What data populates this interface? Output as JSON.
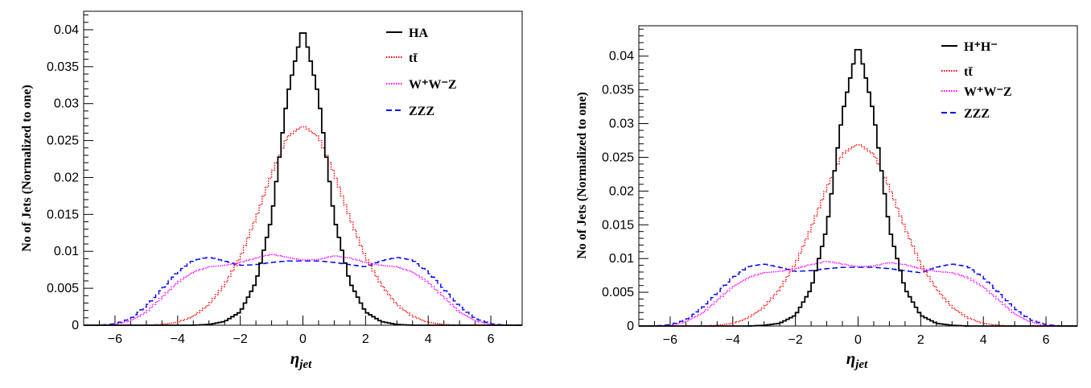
{
  "chart_data": [
    {
      "type": "line",
      "title": "",
      "xlabel": "η",
      "xlabel_sub": "jet",
      "ylabel": "No of Jets (Normalized to one)",
      "xlim": [
        -7,
        7
      ],
      "ylim": [
        0,
        0.0425
      ],
      "xticks": [
        "−6",
        "−4",
        "−2",
        "0",
        "2",
        "4",
        "6"
      ],
      "yticks": [
        "0",
        "0.005",
        "0.01",
        "0.015",
        "0.02",
        "0.025",
        "0.03",
        "0.035",
        "0.04"
      ],
      "legend_position": "top-right",
      "series": [
        {
          "name": "HA",
          "color": "#000000",
          "style": "solid"
        },
        {
          "name": "tt̄",
          "color": "#ff0000",
          "style": "dotted"
        },
        {
          "name": "W⁺W⁻Z",
          "color": "#ff00ff",
          "style": "dotted"
        },
        {
          "name": "ZZZ",
          "color": "#0000ff",
          "style": "dashed"
        }
      ],
      "x": [
        -7,
        -6.5,
        -6,
        -5.5,
        -5,
        -4.5,
        -4,
        -3.5,
        -3,
        -2.5,
        -2,
        -1.5,
        -1,
        -0.5,
        0,
        0.5,
        1,
        1.5,
        2,
        2.5,
        3,
        3.5,
        4,
        4.5,
        5,
        5.5,
        6,
        6.5,
        7
      ],
      "series_values": [
        [
          0,
          0,
          0,
          0,
          0,
          0,
          0,
          0,
          0.0001,
          0.0005,
          0.0018,
          0.0058,
          0.0145,
          0.031,
          0.0405,
          0.031,
          0.0145,
          0.0058,
          0.0018,
          0.0005,
          0.0001,
          0,
          0,
          0,
          0,
          0,
          0,
          0,
          0
        ],
        [
          0,
          0,
          0,
          0,
          0,
          0.0001,
          0.0004,
          0.0012,
          0.0028,
          0.0055,
          0.0092,
          0.0145,
          0.0205,
          0.0255,
          0.027,
          0.0255,
          0.0205,
          0.0145,
          0.0092,
          0.0055,
          0.0028,
          0.0012,
          0.0004,
          0.0001,
          0,
          0,
          0,
          0,
          0
        ],
        [
          0,
          0,
          0.0001,
          0.0006,
          0.0018,
          0.0038,
          0.0058,
          0.0072,
          0.0079,
          0.0081,
          0.0085,
          0.0091,
          0.0096,
          0.0092,
          0.0088,
          0.0089,
          0.0094,
          0.0091,
          0.0085,
          0.0081,
          0.0079,
          0.0072,
          0.0058,
          0.0038,
          0.0018,
          0.0006,
          0.0001,
          0,
          0
        ],
        [
          0,
          0,
          0.0002,
          0.0009,
          0.0026,
          0.0049,
          0.0072,
          0.0088,
          0.0092,
          0.0087,
          0.0081,
          0.0082,
          0.0085,
          0.0087,
          0.0087,
          0.0087,
          0.0085,
          0.0082,
          0.0079,
          0.0087,
          0.0092,
          0.0088,
          0.0072,
          0.0049,
          0.0026,
          0.0009,
          0.0002,
          0,
          0
        ]
      ]
    },
    {
      "type": "line",
      "title": "",
      "xlabel": "η",
      "xlabel_sub": "jet",
      "ylabel": "No of Jets (Normalized to one)",
      "xlim": [
        -7,
        7
      ],
      "ylim": [
        0,
        0.0445
      ],
      "xticks": [
        "−6",
        "−4",
        "−2",
        "0",
        "2",
        "4",
        "6"
      ],
      "yticks": [
        "0",
        "0.005",
        "0.01",
        "0.015",
        "0.02",
        "0.025",
        "0.03",
        "0.035",
        "0.04"
      ],
      "legend_position": "top-right",
      "series": [
        {
          "name": "H⁺H⁻",
          "color": "#000000",
          "style": "solid"
        },
        {
          "name": "tt̄",
          "color": "#ff0000",
          "style": "dotted"
        },
        {
          "name": "W⁺W⁻Z",
          "color": "#ff00ff",
          "style": "dotted"
        },
        {
          "name": "ZZZ",
          "color": "#0000ff",
          "style": "dashed"
        }
      ],
      "x": [
        -7,
        -6.5,
        -6,
        -5.5,
        -5,
        -4.5,
        -4,
        -3.5,
        -3,
        -2.5,
        -2,
        -1.5,
        -1,
        -0.5,
        0,
        0.5,
        1,
        1.5,
        2,
        2.5,
        3,
        3.5,
        4,
        4.5,
        5,
        5.5,
        6,
        6.5,
        7
      ],
      "series_values": [
        [
          0,
          0,
          0,
          0,
          0,
          0,
          0,
          0,
          0.0001,
          0.0004,
          0.0016,
          0.0055,
          0.0145,
          0.0315,
          0.042,
          0.0315,
          0.0145,
          0.0055,
          0.0016,
          0.0004,
          0.0001,
          0,
          0,
          0,
          0,
          0,
          0,
          0,
          0
        ],
        [
          0,
          0,
          0,
          0,
          0,
          0.0001,
          0.0004,
          0.0012,
          0.0028,
          0.0055,
          0.0092,
          0.0145,
          0.0205,
          0.0255,
          0.027,
          0.0255,
          0.0205,
          0.0145,
          0.0092,
          0.0055,
          0.0028,
          0.0012,
          0.0004,
          0.0001,
          0,
          0,
          0,
          0,
          0
        ],
        [
          0,
          0,
          0.0001,
          0.0006,
          0.0018,
          0.0038,
          0.0058,
          0.0072,
          0.0079,
          0.0081,
          0.0085,
          0.0091,
          0.0096,
          0.0092,
          0.0088,
          0.0089,
          0.0094,
          0.0091,
          0.0085,
          0.0081,
          0.0079,
          0.0072,
          0.0058,
          0.0038,
          0.0018,
          0.0006,
          0.0001,
          0,
          0
        ],
        [
          0,
          0,
          0.0002,
          0.0009,
          0.0026,
          0.0049,
          0.0072,
          0.0088,
          0.0092,
          0.0087,
          0.0081,
          0.0082,
          0.0085,
          0.0087,
          0.0087,
          0.0087,
          0.0085,
          0.0082,
          0.0079,
          0.0087,
          0.0092,
          0.0088,
          0.0072,
          0.0049,
          0.0026,
          0.0009,
          0.0002,
          0,
          0
        ]
      ]
    }
  ]
}
